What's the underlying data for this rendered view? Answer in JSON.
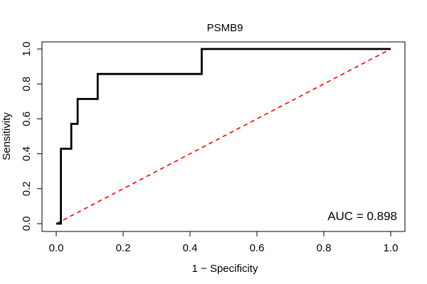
{
  "chart_data": {
    "type": "line",
    "title": "PSMB9",
    "xlabel": "1 − Specificity",
    "ylabel": "Sensitivity",
    "xlim": [
      0,
      1
    ],
    "ylim": [
      0,
      1
    ],
    "xticks": [
      0.0,
      0.2,
      0.4,
      0.6,
      0.8,
      1.0
    ],
    "yticks": [
      0.0,
      0.2,
      0.4,
      0.6,
      0.8,
      1.0
    ],
    "xtick_labels": [
      "0.0",
      "0.2",
      "0.4",
      "0.6",
      "0.8",
      "1.0"
    ],
    "ytick_labels": [
      "0.0",
      "0.2",
      "0.4",
      "0.6",
      "0.8",
      "1.0"
    ],
    "grid": false,
    "annotation": "AUC = 0.898",
    "series": [
      {
        "role": "roc-curve",
        "color": "#000000",
        "style": "solid",
        "x": [
          0.0,
          0.014,
          0.014,
          0.031,
          0.045,
          0.045,
          0.064,
          0.064,
          0.124,
          0.124,
          0.435,
          0.435,
          1.0
        ],
        "y": [
          0.0,
          0.0,
          0.429,
          0.429,
          0.429,
          0.571,
          0.571,
          0.714,
          0.714,
          0.857,
          0.857,
          1.0,
          1.0
        ]
      },
      {
        "role": "reference-diagonal",
        "color": "#ff0000",
        "style": "dashed",
        "x": [
          0,
          1
        ],
        "y": [
          0,
          1
        ]
      }
    ]
  }
}
